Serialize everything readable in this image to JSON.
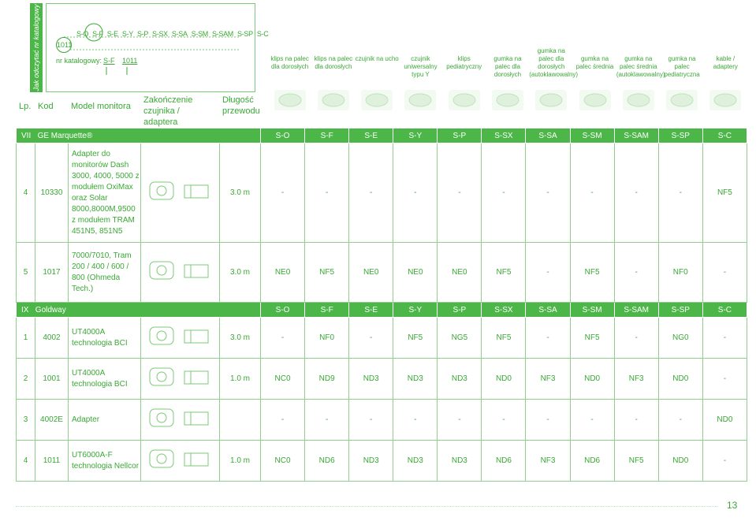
{
  "side_label": "Jak odczytać nr katalogowy",
  "key": {
    "cat_number": "1011",
    "codes": [
      "S-O",
      "S-F",
      "S-E",
      "S-Y",
      "S-P",
      "S-SX",
      "S-SA",
      "S-SM",
      "S-SAM",
      "S-SP",
      "S-C"
    ],
    "label": "nr katalogowy:",
    "example_code": "S-F",
    "example_number": "1011"
  },
  "sensor_headers": [
    "klips na palec dla dorosłych",
    "klips na palec dla dorosłych",
    "czujnik na ucho",
    "czujnik uniwersalny typu Y",
    "klips pediatryczny",
    "gumka na palec dla dorosłych",
    "gumka na palec dla dorosłych (autoklawowalny)",
    "gumka na palec średnia",
    "gumka na palec średnia (autoklawowalny)",
    "gumka na palec pediatryczna",
    "kable / adaptery"
  ],
  "columns": {
    "lp": "Lp.",
    "kod": "Kod",
    "model": "Model monitora",
    "zakonczenie": "Zakończenie czujnika / adaptera",
    "dlugosc": "Długość przewodu"
  },
  "groups": [
    {
      "roman": "VII",
      "name": "GE Marquette®",
      "codes": [
        "S-O",
        "S-F",
        "S-E",
        "S-Y",
        "S-P",
        "S-SX",
        "S-SA",
        "S-SM",
        "S-SAM",
        "S-SP",
        "S-C"
      ],
      "rows": [
        {
          "lp": "4",
          "kod": "10330",
          "model": "Adapter do monitorów Dash 3000, 4000, 5000 z modułem OxiMax oraz Solar 8000,8000M,9500 z modułem TRAM 451N5, 851N5",
          "len": "3.0 m",
          "vals": [
            "-",
            "-",
            "-",
            "-",
            "-",
            "-",
            "-",
            "-",
            "-",
            "-",
            "NF5"
          ]
        },
        {
          "lp": "5",
          "kod": "1017",
          "model": "7000/7010, Tram 200 / 400 / 600 / 800 (Ohmeda Tech.)",
          "len": "3.0 m",
          "vals": [
            "NE0",
            "NF5",
            "NE0",
            "NE0",
            "NE0",
            "NF5",
            "-",
            "NF5",
            "-",
            "NF0",
            "-"
          ]
        }
      ]
    },
    {
      "roman": "IX",
      "name": "Goldway",
      "codes": [
        "S-O",
        "S-F",
        "S-E",
        "S-Y",
        "S-P",
        "S-SX",
        "S-SA",
        "S-SM",
        "S-SAM",
        "S-SP",
        "S-C"
      ],
      "rows": [
        {
          "lp": "1",
          "kod": "4002",
          "model": "UT4000A technologia BCI",
          "len": "3.0 m",
          "vals": [
            "-",
            "NF0",
            "-",
            "NF5",
            "NG5",
            "NF5",
            "-",
            "NF5",
            "-",
            "NG0",
            "-"
          ]
        },
        {
          "lp": "2",
          "kod": "1001",
          "model": "UT4000A technologia BCI",
          "len": "1.0 m",
          "vals": [
            "NC0",
            "ND9",
            "ND3",
            "ND3",
            "ND3",
            "ND0",
            "NF3",
            "ND0",
            "NF3",
            "ND0",
            "-"
          ]
        },
        {
          "lp": "3",
          "kod": "4002E",
          "model": "Adapter",
          "len": "",
          "vals": [
            "-",
            "-",
            "-",
            "-",
            "-",
            "-",
            "-",
            "-",
            "-",
            "-",
            "ND0"
          ]
        },
        {
          "lp": "4",
          "kod": "1011",
          "model": "UT6000A-F technologia Nellcor",
          "len": "1.0 m",
          "vals": [
            "NC0",
            "ND6",
            "ND3",
            "ND3",
            "ND3",
            "ND6",
            "NF3",
            "ND6",
            "NF5",
            "ND0",
            "-"
          ]
        }
      ]
    }
  ],
  "page_number": "13"
}
